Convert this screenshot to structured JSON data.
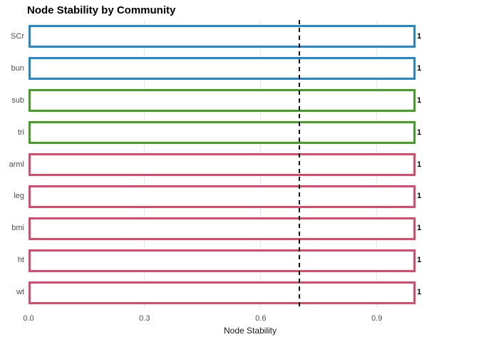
{
  "chart_data": {
    "type": "bar",
    "orientation": "horizontal",
    "title": "Node Stability by Community",
    "xlabel": "Node Stability",
    "ylabel": "",
    "categories": [
      "SCr",
      "bun",
      "sub",
      "tri",
      "arml",
      "leg",
      "bmi",
      "ht",
      "wt"
    ],
    "values": [
      1,
      1,
      1,
      1,
      1,
      1,
      1,
      1,
      1
    ],
    "value_labels": [
      "1",
      "1",
      "1",
      "1",
      "1",
      "1",
      "1",
      "1",
      "1"
    ],
    "bar_colors": [
      "#2188CE",
      "#2188CE",
      "#44A024",
      "#44A024",
      "#DB4A6B",
      "#DB4A6B",
      "#DB4A6B",
      "#DB4A6B",
      "#DB4A6B"
    ],
    "bar_fill": "#FFFFFF",
    "community_colors": {
      "community_blue": "#2188CE",
      "community_green": "#44A024",
      "community_pink": "#DB4A6B"
    },
    "x_ticks": [
      {
        "value": 0.0,
        "label": "0.0"
      },
      {
        "value": 0.3,
        "label": "0.3"
      },
      {
        "value": 0.6,
        "label": "0.6"
      },
      {
        "value": 0.9,
        "label": "0.9"
      }
    ],
    "xlim": [
      0,
      1.15
    ],
    "reference_line": {
      "value": 0.7,
      "style": "dashed",
      "color": "#000000"
    },
    "grid": "vertical-major-only",
    "gridline_color": "#E6E6E6",
    "axis_text_color": "#4D4D4D",
    "legend": "none"
  }
}
